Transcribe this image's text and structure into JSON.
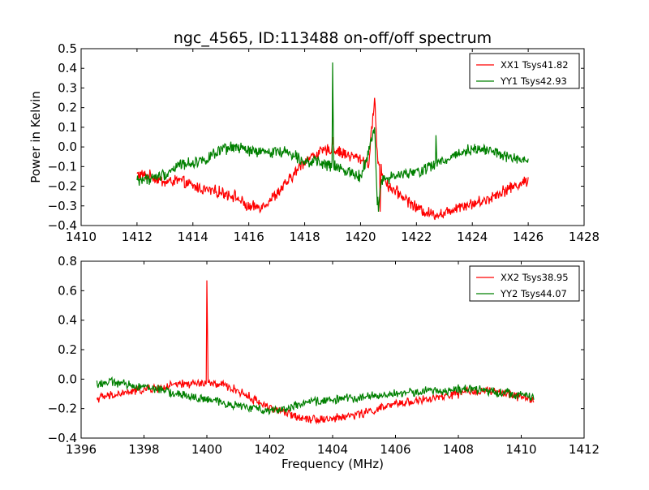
{
  "chart_data": [
    {
      "type": "line",
      "title": "ngc_4565, ID:113488 on-off/off spectrum",
      "xlabel": "",
      "ylabel": "Power in Kelvin",
      "xlim": [
        1410,
        1428
      ],
      "ylim": [
        -0.4,
        0.5
      ],
      "xticks": [
        "1410",
        "1412",
        "1414",
        "1416",
        "1418",
        "1420",
        "1422",
        "1424",
        "1426",
        "1428"
      ],
      "yticks": [
        "−0.4",
        "−0.3",
        "−0.2",
        "−0.1",
        "0.0",
        "0.1",
        "0.2",
        "0.3",
        "0.4",
        "0.5"
      ],
      "legend_position": "top-right",
      "grid": false,
      "series": [
        {
          "name": "XX1 Tsys41.82",
          "color": "#ff0000",
          "x": [
            1412,
            1412.5,
            1413,
            1413.5,
            1414,
            1414.5,
            1415,
            1415.5,
            1416,
            1416.5,
            1417,
            1417.5,
            1418,
            1418.5,
            1419,
            1419.5,
            1420,
            1420.3,
            1420.5,
            1420.6,
            1420.8,
            1421,
            1421.5,
            1422,
            1422.5,
            1423,
            1423.5,
            1424,
            1424.5,
            1425,
            1425.5,
            1426
          ],
          "y": [
            -0.14,
            -0.15,
            -0.18,
            -0.17,
            -0.2,
            -0.22,
            -0.23,
            -0.25,
            -0.31,
            -0.3,
            -0.24,
            -0.16,
            -0.07,
            -0.03,
            -0.01,
            -0.04,
            -0.06,
            -0.08,
            0.25,
            -0.05,
            -0.14,
            -0.2,
            -0.25,
            -0.31,
            -0.34,
            -0.34,
            -0.3,
            -0.29,
            -0.27,
            -0.23,
            -0.2,
            -0.17
          ],
          "spikes": [
            {
              "x": 1419.0,
              "y": 0.05
            },
            {
              "x": 1420.5,
              "y": 0.25
            },
            {
              "x": 1420.7,
              "y": -0.33
            }
          ]
        },
        {
          "name": "YY1 Tsys42.93",
          "color": "#008000",
          "x": [
            1412,
            1412.5,
            1413,
            1413.5,
            1414,
            1414.5,
            1415,
            1415.5,
            1416,
            1416.5,
            1417,
            1417.5,
            1418,
            1418.5,
            1419,
            1419.5,
            1420,
            1420.5,
            1420.6,
            1420.8,
            1421,
            1421.5,
            1422,
            1422.5,
            1423,
            1423.5,
            1424,
            1424.5,
            1425,
            1425.5,
            1426
          ],
          "y": [
            -0.17,
            -0.16,
            -0.14,
            -0.09,
            -0.08,
            -0.06,
            -0.02,
            0.0,
            -0.02,
            -0.03,
            -0.02,
            -0.03,
            -0.07,
            -0.08,
            -0.1,
            -0.12,
            -0.15,
            0.08,
            -0.28,
            -0.16,
            -0.16,
            -0.14,
            -0.13,
            -0.1,
            -0.07,
            -0.03,
            -0.01,
            -0.01,
            -0.04,
            -0.06,
            -0.08
          ],
          "spikes": [
            {
              "x": 1419.0,
              "y": 0.43
            },
            {
              "x": 1420.5,
              "y": 0.1
            },
            {
              "x": 1420.65,
              "y": -0.33
            },
            {
              "x": 1422.7,
              "y": 0.06
            }
          ]
        }
      ]
    },
    {
      "type": "line",
      "title": "",
      "xlabel": "Frequency (MHz)",
      "ylabel": "",
      "xlim": [
        1396,
        1412
      ],
      "ylim": [
        -0.4,
        0.8
      ],
      "xticks": [
        "1396",
        "1398",
        "1400",
        "1402",
        "1404",
        "1406",
        "1408",
        "1410",
        "1412"
      ],
      "yticks": [
        "−0.4",
        "−0.2",
        "0.0",
        "0.2",
        "0.4",
        "0.6",
        "0.8"
      ],
      "legend_position": "top-right",
      "grid": false,
      "series": [
        {
          "name": "XX2 Tsys38.95",
          "color": "#ff0000",
          "x": [
            1396.5,
            1397,
            1397.5,
            1398,
            1398.5,
            1399,
            1399.5,
            1400,
            1400.5,
            1401,
            1401.5,
            1402,
            1402.5,
            1403,
            1403.5,
            1404,
            1404.5,
            1405,
            1405.5,
            1406,
            1406.5,
            1407,
            1407.5,
            1408,
            1408.5,
            1409,
            1409.5,
            1410,
            1410.4
          ],
          "y": [
            -0.13,
            -0.11,
            -0.09,
            -0.07,
            -0.06,
            -0.04,
            -0.03,
            -0.03,
            -0.04,
            -0.08,
            -0.14,
            -0.19,
            -0.23,
            -0.26,
            -0.27,
            -0.27,
            -0.25,
            -0.23,
            -0.2,
            -0.17,
            -0.15,
            -0.14,
            -0.12,
            -0.1,
            -0.08,
            -0.08,
            -0.1,
            -0.12,
            -0.14
          ],
          "spikes": [
            {
              "x": 1400.0,
              "y": 0.67
            }
          ]
        },
        {
          "name": "YY2 Tsys44.07",
          "color": "#008000",
          "x": [
            1396.5,
            1397,
            1397.5,
            1398,
            1398.5,
            1399,
            1399.5,
            1400,
            1400.5,
            1401,
            1401.5,
            1402,
            1402.5,
            1403,
            1403.5,
            1404,
            1404.5,
            1405,
            1405.5,
            1406,
            1406.5,
            1407,
            1407.5,
            1408,
            1408.5,
            1409,
            1409.5,
            1410,
            1410.4
          ],
          "y": [
            -0.03,
            -0.02,
            -0.04,
            -0.05,
            -0.07,
            -0.1,
            -0.12,
            -0.14,
            -0.16,
            -0.18,
            -0.2,
            -0.21,
            -0.2,
            -0.17,
            -0.15,
            -0.14,
            -0.13,
            -0.12,
            -0.11,
            -0.1,
            -0.09,
            -0.08,
            -0.08,
            -0.07,
            -0.07,
            -0.08,
            -0.09,
            -0.11,
            -0.12
          ],
          "spikes": []
        }
      ]
    }
  ]
}
